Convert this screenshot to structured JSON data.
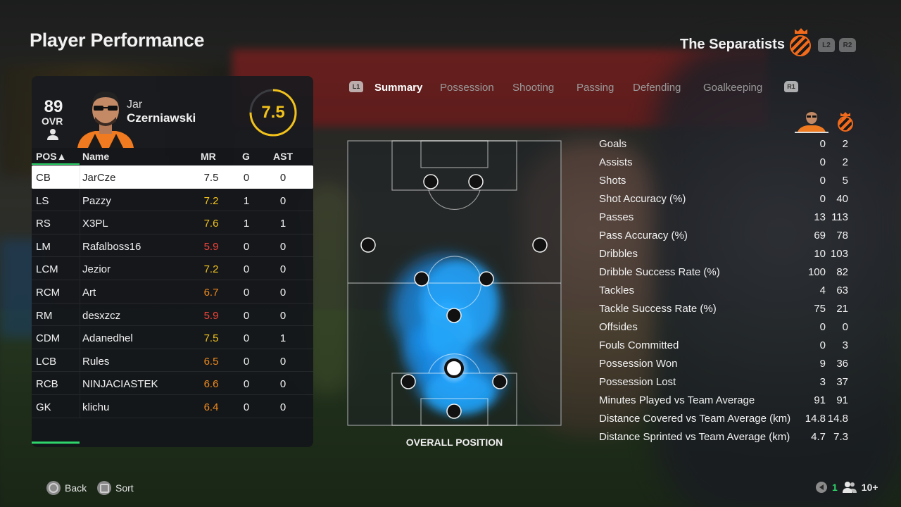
{
  "header": {
    "title": "Player Performance",
    "team_name": "The Separatists",
    "l2": "L2",
    "r2": "R2"
  },
  "player": {
    "ovr": "89",
    "ovr_label": "OVR",
    "first_name": "Jar",
    "last_name": "Czerniawski",
    "match_rating": "7.5"
  },
  "table": {
    "headers": {
      "pos": "POS▲",
      "name": "Name",
      "mr": "MR",
      "g": "G",
      "ast": "AST"
    },
    "rows": [
      {
        "pos": "CB",
        "name": "JarCze",
        "mr": "7.5",
        "g": "0",
        "ast": "0",
        "tone": "neutral"
      },
      {
        "pos": "LS",
        "name": "Pazzy",
        "mr": "7.2",
        "g": "1",
        "ast": "0",
        "tone": "good"
      },
      {
        "pos": "RS",
        "name": "X3PL",
        "mr": "7.6",
        "g": "1",
        "ast": "1",
        "tone": "good"
      },
      {
        "pos": "LM",
        "name": "Rafalboss16",
        "mr": "5.9",
        "g": "0",
        "ast": "0",
        "tone": "bad"
      },
      {
        "pos": "LCM",
        "name": "Jezior",
        "mr": "7.2",
        "g": "0",
        "ast": "0",
        "tone": "good"
      },
      {
        "pos": "RCM",
        "name": "Art",
        "mr": "6.7",
        "g": "0",
        "ast": "0",
        "tone": "ok"
      },
      {
        "pos": "RM",
        "name": "desxzcz",
        "mr": "5.9",
        "g": "0",
        "ast": "0",
        "tone": "bad"
      },
      {
        "pos": "CDM",
        "name": "Adanedhel",
        "mr": "7.5",
        "g": "0",
        "ast": "1",
        "tone": "good"
      },
      {
        "pos": "LCB",
        "name": "Rules",
        "mr": "6.5",
        "g": "0",
        "ast": "0",
        "tone": "ok"
      },
      {
        "pos": "RCB",
        "name": "NINJACIASTEK",
        "mr": "6.6",
        "g": "0",
        "ast": "0",
        "tone": "ok"
      },
      {
        "pos": "GK",
        "name": "klichu",
        "mr": "6.4",
        "g": "0",
        "ast": "0",
        "tone": "ok"
      }
    ]
  },
  "tabs": {
    "l1": "L1",
    "r1": "R1",
    "items": [
      "Summary",
      "Possession",
      "Shooting",
      "Passing",
      "Defending",
      "Goalkeeping"
    ],
    "active": "Summary"
  },
  "pitch": {
    "label": "OVERALL POSITION"
  },
  "stats": [
    {
      "label": "Goals",
      "player": "0",
      "team": "2"
    },
    {
      "label": "Assists",
      "player": "0",
      "team": "2"
    },
    {
      "label": "Shots",
      "player": "0",
      "team": "5"
    },
    {
      "label": "Shot Accuracy (%)",
      "player": "0",
      "team": "40"
    },
    {
      "label": "Passes",
      "player": "13",
      "team": "113"
    },
    {
      "label": "Pass Accuracy (%)",
      "player": "69",
      "team": "78"
    },
    {
      "label": "Dribbles",
      "player": "10",
      "team": "103"
    },
    {
      "label": "Dribble Success Rate (%)",
      "player": "100",
      "team": "82"
    },
    {
      "label": "Tackles",
      "player": "4",
      "team": "63"
    },
    {
      "label": "Tackle Success Rate (%)",
      "player": "75",
      "team": "21"
    },
    {
      "label": "Offsides",
      "player": "0",
      "team": "0"
    },
    {
      "label": "Fouls Committed",
      "player": "0",
      "team": "3"
    },
    {
      "label": "Possession Won",
      "player": "9",
      "team": "36"
    },
    {
      "label": "Possession Lost",
      "player": "3",
      "team": "37"
    },
    {
      "label": "Minutes Played vs Team Average",
      "player": "91",
      "team": "91"
    },
    {
      "label": "Distance Covered vs Team Average (km)",
      "player": "14.8",
      "team": "14.8"
    },
    {
      "label": "Distance Sprinted vs Team Average (km)",
      "player": "4.7",
      "team": "7.3"
    }
  ],
  "footer": {
    "back": "Back",
    "sort": "Sort",
    "status_count": "1",
    "online_label": "10+"
  },
  "colors": {
    "accent_green": "#2fd46a",
    "rating_yellow": "#f2c21b",
    "rating_orange": "#f28a1b",
    "rating_red": "#f0443a",
    "crest_orange": "#f26a1b",
    "heatmap_blue": "#1aa0ff"
  }
}
